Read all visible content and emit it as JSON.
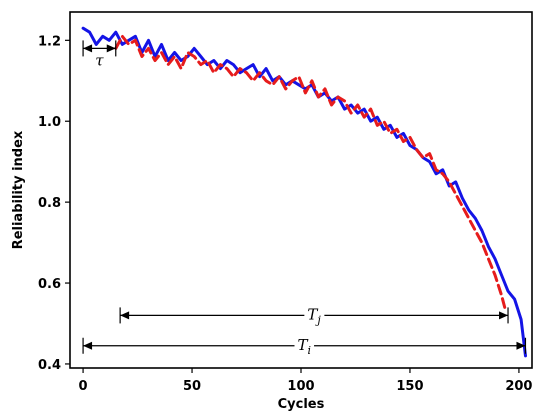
{
  "chart_data": {
    "type": "line",
    "xlabel": "Cycles",
    "ylabel": "Reliability index",
    "xlim": [
      -6,
      206
    ],
    "ylim": [
      0.39,
      1.27
    ],
    "xticks": [
      0,
      50,
      100,
      150,
      200
    ],
    "yticks": [
      0.4,
      0.6,
      0.8,
      1.0,
      1.2
    ],
    "xtick_labels": [
      "0",
      "50",
      "100",
      "150",
      "200"
    ],
    "ytick_labels": [
      "0.4",
      "0.6",
      "0.8",
      "1.0",
      "1.2"
    ],
    "grid": false,
    "series": [
      {
        "color": "#1414e6",
        "style": "solid",
        "x": [
          0,
          3,
          6,
          9,
          12,
          15,
          18,
          21,
          24,
          27,
          30,
          33,
          36,
          39,
          42,
          45,
          48,
          51,
          54,
          57,
          60,
          63,
          66,
          69,
          72,
          75,
          78,
          81,
          84,
          87,
          90,
          93,
          96,
          99,
          102,
          105,
          108,
          111,
          114,
          117,
          120,
          123,
          126,
          129,
          132,
          135,
          138,
          141,
          144,
          147,
          150,
          153,
          156,
          159,
          162,
          165,
          168,
          171,
          174,
          177,
          180,
          183,
          186,
          189,
          192,
          195,
          198,
          201,
          203
        ],
        "y": [
          1.23,
          1.22,
          1.19,
          1.21,
          1.2,
          1.22,
          1.19,
          1.2,
          1.21,
          1.17,
          1.2,
          1.16,
          1.19,
          1.15,
          1.17,
          1.15,
          1.16,
          1.18,
          1.16,
          1.14,
          1.15,
          1.13,
          1.15,
          1.14,
          1.12,
          1.13,
          1.14,
          1.11,
          1.13,
          1.1,
          1.11,
          1.09,
          1.1,
          1.09,
          1.08,
          1.09,
          1.06,
          1.07,
          1.05,
          1.06,
          1.03,
          1.04,
          1.02,
          1.03,
          1.0,
          1.01,
          0.98,
          0.99,
          0.96,
          0.97,
          0.94,
          0.93,
          0.91,
          0.9,
          0.87,
          0.88,
          0.84,
          0.85,
          0.81,
          0.78,
          0.76,
          0.73,
          0.69,
          0.66,
          0.62,
          0.58,
          0.56,
          0.51,
          0.42
        ]
      },
      {
        "color": "#e61c1c",
        "style": "dashed",
        "x": [
          15,
          18,
          21,
          24,
          27,
          30,
          33,
          36,
          39,
          42,
          45,
          48,
          51,
          54,
          57,
          60,
          63,
          66,
          69,
          72,
          75,
          78,
          81,
          84,
          87,
          90,
          93,
          96,
          99,
          102,
          105,
          108,
          111,
          114,
          117,
          120,
          123,
          126,
          129,
          132,
          135,
          138,
          141,
          144,
          147,
          150,
          153,
          156,
          159,
          162,
          165,
          168,
          171,
          174,
          177,
          180,
          183,
          186,
          189,
          192,
          194
        ],
        "y": [
          1.18,
          1.21,
          1.19,
          1.2,
          1.16,
          1.18,
          1.15,
          1.17,
          1.14,
          1.16,
          1.13,
          1.17,
          1.16,
          1.14,
          1.15,
          1.12,
          1.14,
          1.13,
          1.11,
          1.13,
          1.12,
          1.1,
          1.12,
          1.1,
          1.09,
          1.11,
          1.08,
          1.1,
          1.11,
          1.07,
          1.1,
          1.06,
          1.08,
          1.04,
          1.06,
          1.05,
          1.02,
          1.04,
          1.01,
          1.03,
          0.99,
          1.0,
          0.97,
          0.98,
          0.95,
          0.96,
          0.93,
          0.91,
          0.92,
          0.88,
          0.87,
          0.85,
          0.82,
          0.79,
          0.76,
          0.73,
          0.7,
          0.66,
          0.62,
          0.57,
          0.53
        ]
      }
    ],
    "annotations": [
      {
        "label": "τ",
        "x_start": 0,
        "x_end": 15,
        "y": 1.18
      },
      {
        "label": "T_j",
        "x_start": 17,
        "x_end": 195,
        "y": 0.52
      },
      {
        "label": "T_i",
        "x_start": 0,
        "x_end": 203,
        "y": 0.445
      }
    ]
  }
}
